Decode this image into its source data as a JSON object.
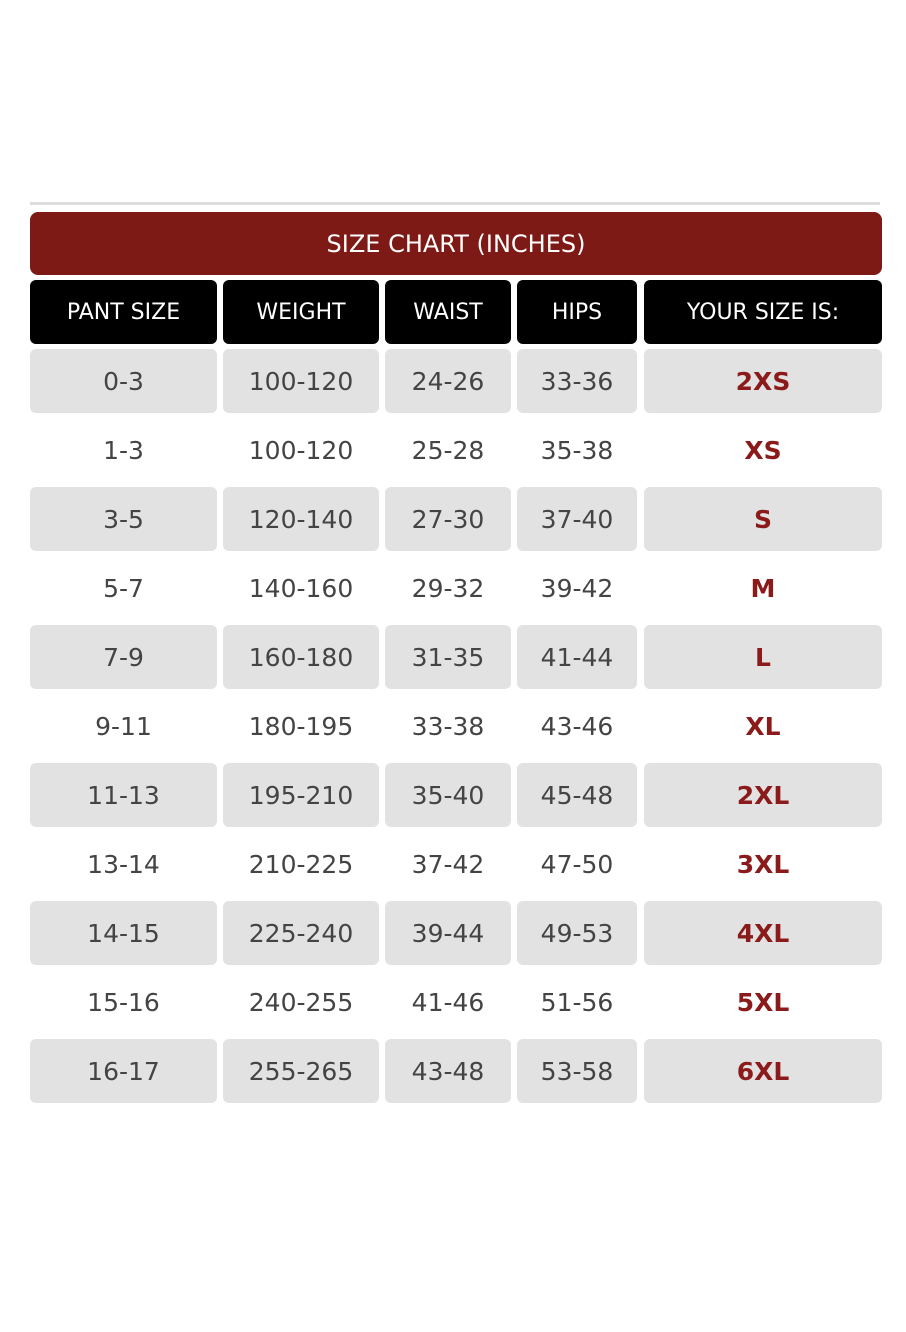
{
  "title": "SIZE CHART (INCHES)",
  "table": {
    "headers": [
      "PANT SIZE",
      "WEIGHT",
      "WAIST",
      "HIPS",
      "YOUR SIZE IS:"
    ],
    "rows": [
      [
        "0-3",
        "100-120",
        "24-26",
        "33-36",
        "2XS"
      ],
      [
        "1-3",
        "100-120",
        "25-28",
        "35-38",
        "XS"
      ],
      [
        "3-5",
        "120-140",
        "27-30",
        "37-40",
        "S"
      ],
      [
        "5-7",
        "140-160",
        "29-32",
        "39-42",
        "M"
      ],
      [
        "7-9",
        "160-180",
        "31-35",
        "41-44",
        "L"
      ],
      [
        "9-11",
        "180-195",
        "33-38",
        "43-46",
        "XL"
      ],
      [
        "11-13",
        "195-210",
        "35-40",
        "45-48",
        "2XL"
      ],
      [
        "13-14",
        "210-225",
        "37-42",
        "47-50",
        "3XL"
      ],
      [
        "14-15",
        "225-240",
        "39-44",
        "49-53",
        "4XL"
      ],
      [
        "15-16",
        "240-255",
        "41-46",
        "51-56",
        "5XL"
      ],
      [
        "16-17",
        "255-265",
        "43-48",
        "53-58",
        "6XL"
      ]
    ]
  }
}
